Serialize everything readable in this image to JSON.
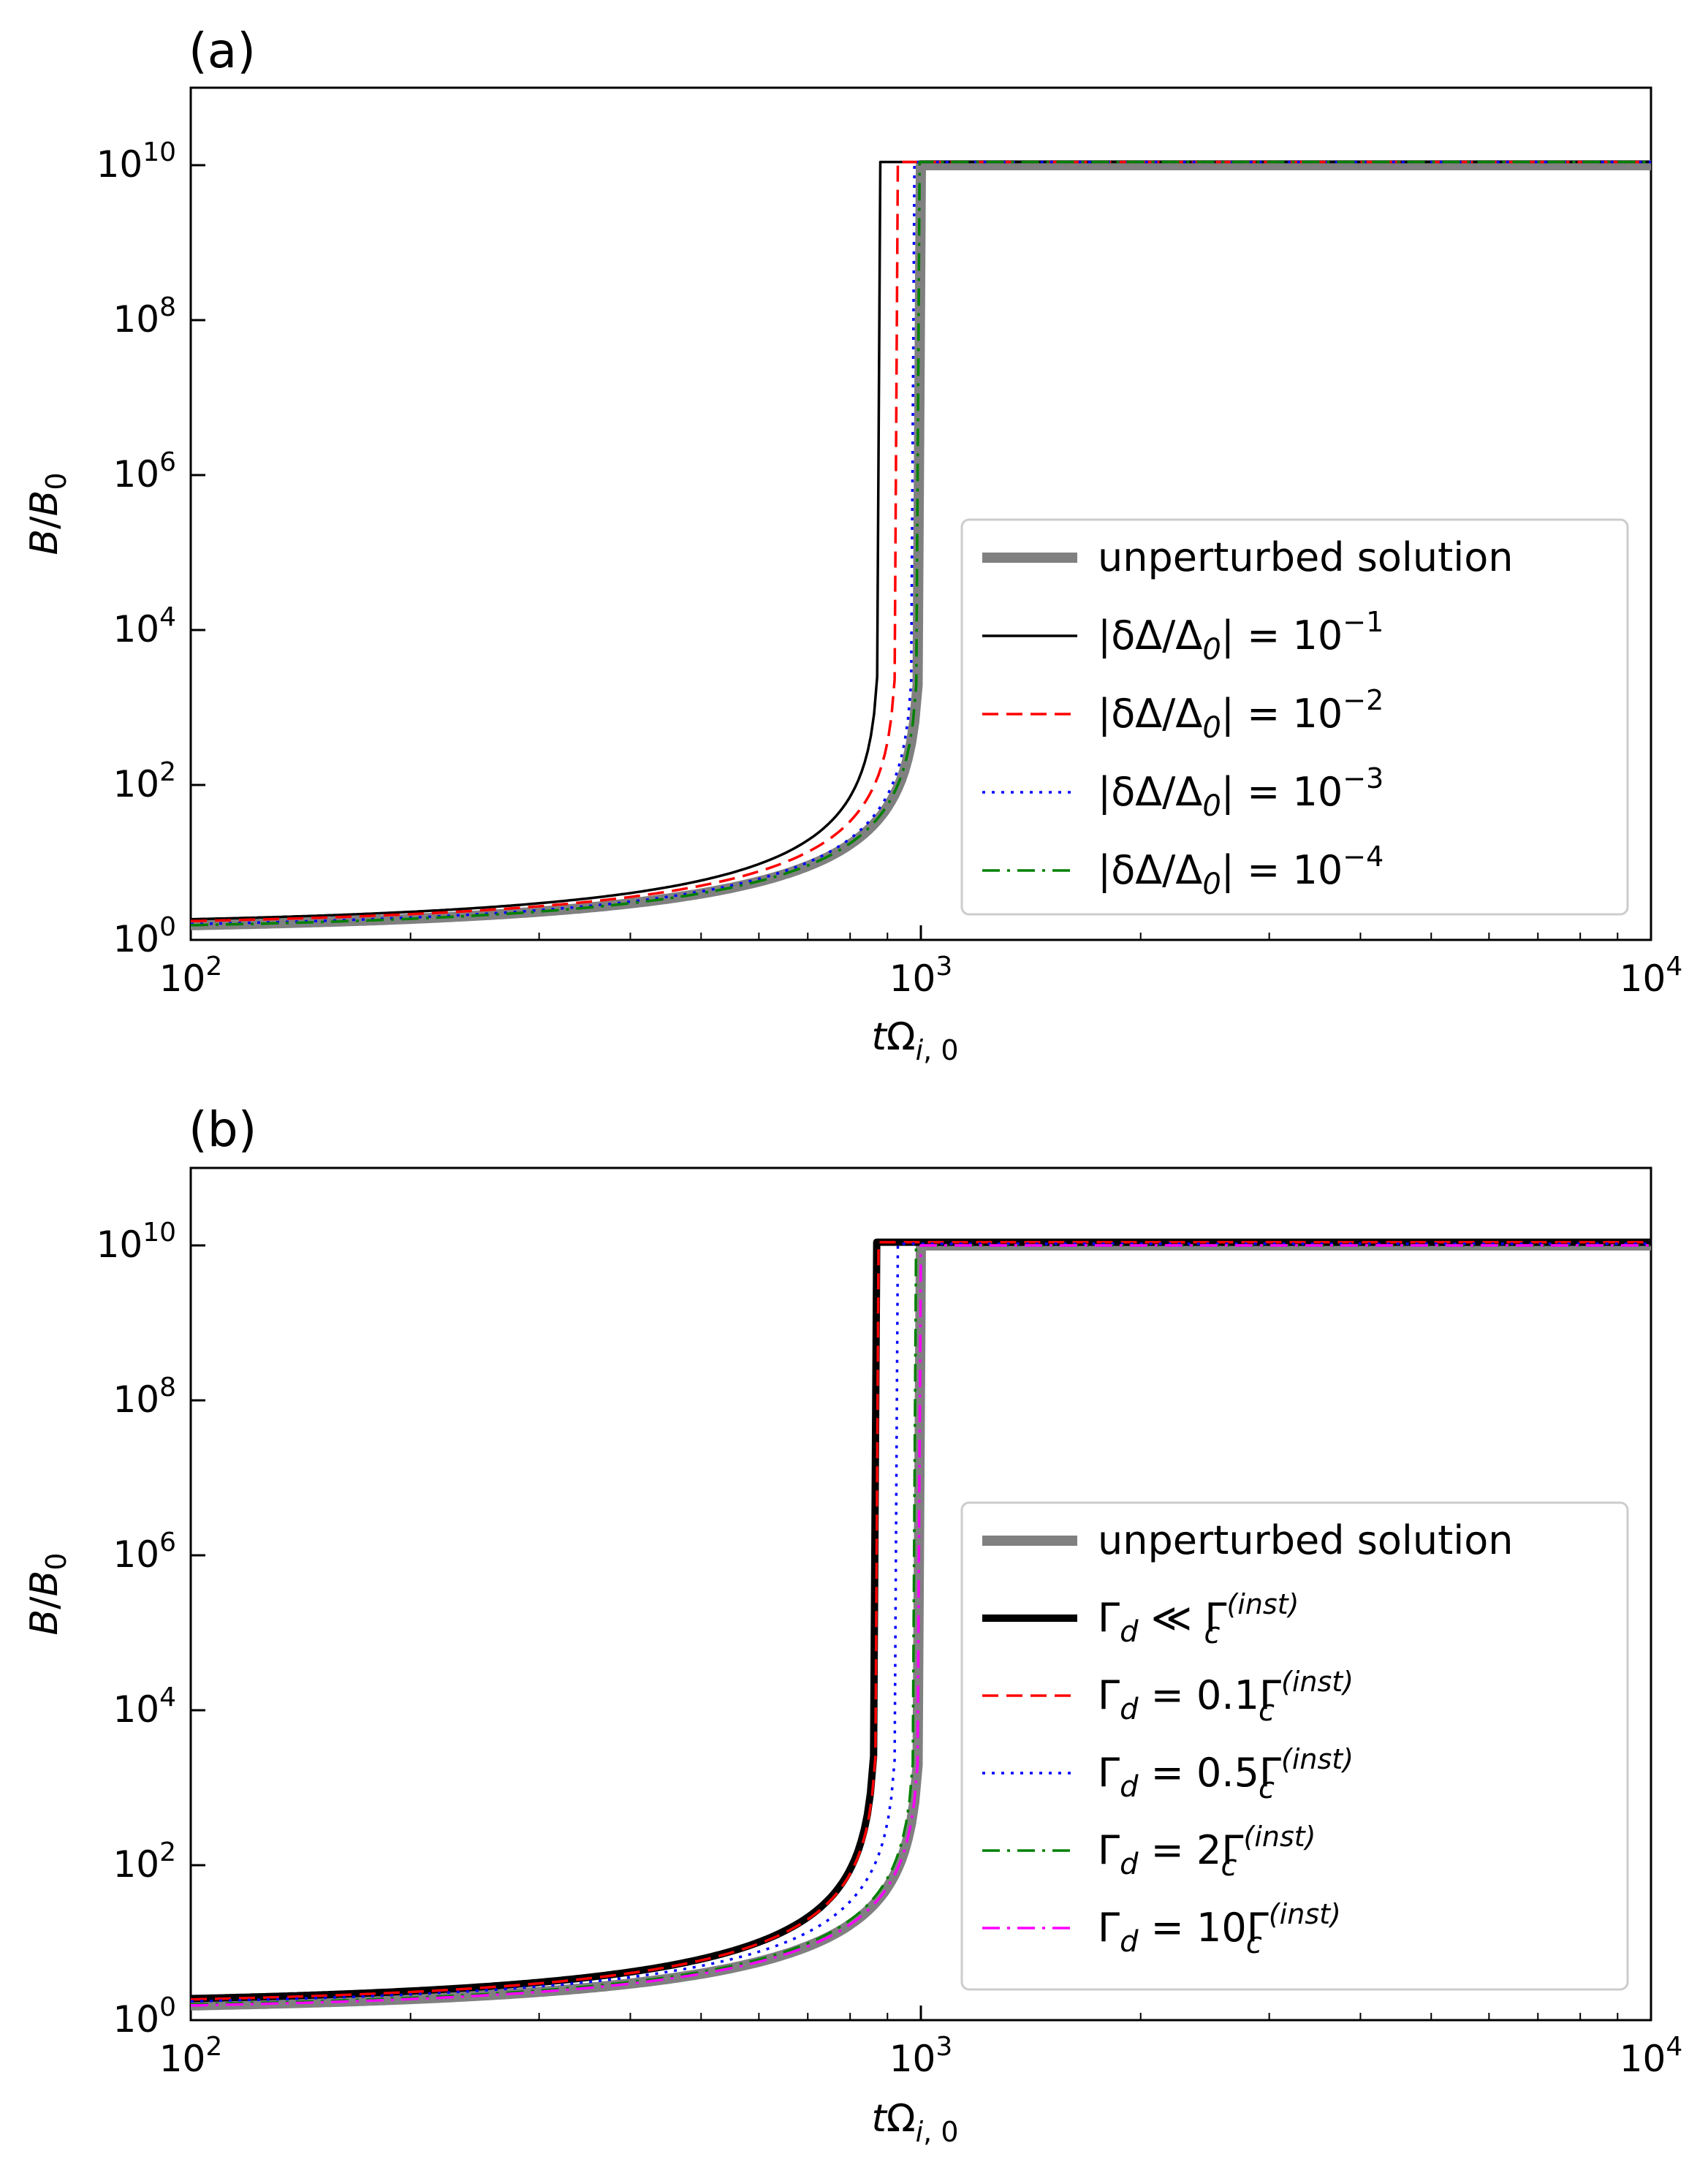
{
  "chart_data": [
    {
      "panel_label": "(a)",
      "type": "line",
      "xscale": "log",
      "yscale": "log",
      "xlim": [
        100,
        10000
      ],
      "ylim": [
        1,
        100000000000.0
      ],
      "xlabel": "tΩ_{i,0}",
      "ylabel": "B/B_0",
      "xticks": [
        {
          "value": 100,
          "base": "10",
          "exp": "2"
        },
        {
          "value": 1000,
          "base": "10",
          "exp": "3"
        },
        {
          "value": 10000,
          "base": "10",
          "exp": "4"
        }
      ],
      "yticks": [
        {
          "value": 1,
          "base": "10",
          "exp": "0"
        },
        {
          "value": 100,
          "base": "10",
          "exp": "2"
        },
        {
          "value": 10000,
          "base": "10",
          "exp": "4"
        },
        {
          "value": 1000000,
          "base": "10",
          "exp": "6"
        },
        {
          "value": 100000000,
          "base": "10",
          "exp": "8"
        },
        {
          "value": 10000000000,
          "base": "10",
          "exp": "10"
        }
      ],
      "legend_position": "lower-right",
      "series": [
        {
          "name": "unperturbed solution",
          "color": "#808080",
          "style": "solid",
          "width": "thick",
          "tb": 1000,
          "b0": 1.55,
          "sat": 10000000000.0,
          "legend": {
            "prefix": "unperturbed solution"
          }
        },
        {
          "name": "|δΔ/Δ0| = 10^-1",
          "color": "#000000",
          "style": "solid",
          "width": "thin",
          "tb": 880,
          "b0": 1.85,
          "sat": 11000000000.0,
          "legend": {
            "prefix": "|δΔ/Δ",
            "sub": "0",
            "mid": "| = 10",
            "sup": "−1"
          }
        },
        {
          "name": "|δΔ/Δ0| = 10^-2",
          "color": "#ff0000",
          "style": "dashed",
          "width": "thin",
          "tb": 930,
          "b0": 1.75,
          "sat": 11000000000.0,
          "legend": {
            "prefix": "|δΔ/Δ",
            "sub": "0",
            "mid": "| = 10",
            "sup": "−2"
          }
        },
        {
          "name": "|δΔ/Δ0| = 10^-3",
          "color": "#0000ff",
          "style": "dotted",
          "width": "thin",
          "tb": 980,
          "b0": 1.6,
          "sat": 11000000000.0,
          "legend": {
            "prefix": "|δΔ/Δ",
            "sub": "0",
            "mid": "| = 10",
            "sup": "−3"
          }
        },
        {
          "name": "|δΔ/Δ0| = 10^-4",
          "color": "#008000",
          "style": "dashdot",
          "width": "thin",
          "tb": 996,
          "b0": 1.55,
          "sat": 11000000000.0,
          "legend": {
            "prefix": "|δΔ/Δ",
            "sub": "0",
            "mid": "| = 10",
            "sup": "−4"
          }
        }
      ]
    },
    {
      "panel_label": "(b)",
      "type": "line",
      "xscale": "log",
      "yscale": "log",
      "xlim": [
        100,
        10000
      ],
      "ylim": [
        1,
        100000000000.0
      ],
      "xlabel": "tΩ_{i,0}",
      "ylabel": "B/B_0",
      "xticks": [
        {
          "value": 100,
          "base": "10",
          "exp": "2"
        },
        {
          "value": 1000,
          "base": "10",
          "exp": "3"
        },
        {
          "value": 10000,
          "base": "10",
          "exp": "4"
        }
      ],
      "yticks": [
        {
          "value": 1,
          "base": "10",
          "exp": "0"
        },
        {
          "value": 100,
          "base": "10",
          "exp": "2"
        },
        {
          "value": 10000,
          "base": "10",
          "exp": "4"
        },
        {
          "value": 1000000,
          "base": "10",
          "exp": "6"
        },
        {
          "value": 100000000,
          "base": "10",
          "exp": "8"
        },
        {
          "value": 10000000000,
          "base": "10",
          "exp": "10"
        }
      ],
      "legend_position": "lower-right",
      "series": [
        {
          "name": "unperturbed solution",
          "color": "#808080",
          "style": "solid",
          "width": "thick",
          "tb": 1000,
          "b0": 1.55,
          "sat": 10000000000.0,
          "legend": {
            "prefix": "unperturbed solution"
          }
        },
        {
          "name": "Γd ≪ Γc(inst)",
          "color": "#000000",
          "style": "solid",
          "width": "thick",
          "tb": 870,
          "b0": 1.9,
          "sat": 11000000000.0,
          "legend": {
            "prefix": "Γ",
            "sub": "d",
            "mid": " ≪ Γ",
            "sub2": "c",
            "sup": "(inst)"
          }
        },
        {
          "name": "Γd = 0.1Γc(inst)",
          "color": "#ff0000",
          "style": "dashed",
          "width": "thin",
          "tb": 875,
          "b0": 1.85,
          "sat": 11000000000.0,
          "legend": {
            "prefix": "Γ",
            "sub": "d",
            "mid": " = 0.1Γ",
            "sub2": "c",
            "sup": "(inst)"
          }
        },
        {
          "name": "Γd = 0.5Γc(inst)",
          "color": "#0000ff",
          "style": "dotted",
          "width": "thin",
          "tb": 930,
          "b0": 1.75,
          "sat": 10500000000.0,
          "legend": {
            "prefix": "Γ",
            "sub": "d",
            "mid": " = 0.5Γ",
            "sub2": "c",
            "sup": "(inst)"
          }
        },
        {
          "name": "Γd = 2Γc(inst)",
          "color": "#008000",
          "style": "dashdot",
          "width": "thin",
          "tb": 985,
          "b0": 1.6,
          "sat": 10000000000.0,
          "legend": {
            "prefix": "Γ",
            "sub": "d",
            "mid": " = 2Γ",
            "sub2": "c",
            "sup": "(inst)"
          }
        },
        {
          "name": "Γd = 10Γc(inst)",
          "color": "#ff00ff",
          "style": "dashdot",
          "width": "thin",
          "tb": 1000,
          "b0": 1.55,
          "sat": 10000000000.0,
          "legend": {
            "prefix": "Γ",
            "sub": "d",
            "mid": " = 10Γ",
            "sub2": "c",
            "sup": "(inst)"
          }
        }
      ]
    }
  ]
}
